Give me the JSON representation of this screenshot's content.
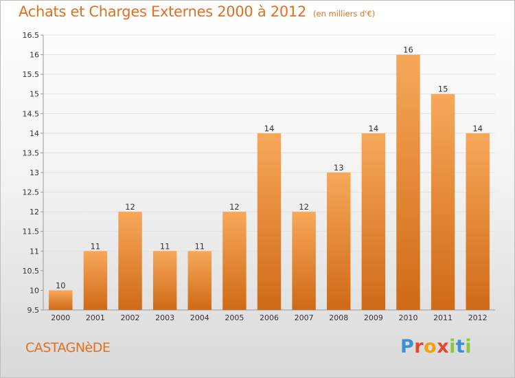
{
  "header": {
    "title": "Achats et Charges Externes 2000 à 2012",
    "unit": "(en milliers d'€)"
  },
  "footer": {
    "commune": "CASTAGNèDE",
    "logo_letters": [
      "P",
      "r",
      "o",
      "x",
      "i",
      "t",
      "i"
    ]
  },
  "colors": {
    "accent": "#e0701e",
    "bar_top": "#f7a85a",
    "bar_bottom": "#cf6a16",
    "grid": "#e2e2e2",
    "axis": "#999999"
  },
  "chart_data": {
    "type": "bar",
    "title": "Achats et Charges Externes 2000 à 2012",
    "xlabel": "",
    "ylabel": "",
    "categories": [
      "2000",
      "2001",
      "2002",
      "2003",
      "2004",
      "2005",
      "2006",
      "2007",
      "2008",
      "2009",
      "2010",
      "2011",
      "2012"
    ],
    "values": [
      10,
      11,
      12,
      11,
      11,
      12,
      14,
      12,
      13,
      14,
      16,
      15,
      14
    ],
    "labels": [
      "10",
      "11",
      "12",
      "11",
      "11",
      "12",
      "14",
      "12",
      "13",
      "14",
      "16",
      "15",
      "14"
    ],
    "ylim": [
      9.5,
      16.5
    ],
    "yticks": [
      9.5,
      10,
      10.5,
      11,
      11.5,
      12,
      12.5,
      13,
      13.5,
      14,
      14.5,
      15,
      15.5,
      16,
      16.5
    ],
    "ytick_labels": [
      "9.5",
      "10",
      "10.5",
      "11",
      "11.5",
      "12",
      "12.5",
      "13",
      "13.5",
      "14",
      "14.5",
      "15",
      "15.5",
      "16",
      "16.5"
    ],
    "grid": true,
    "legend": "none"
  }
}
